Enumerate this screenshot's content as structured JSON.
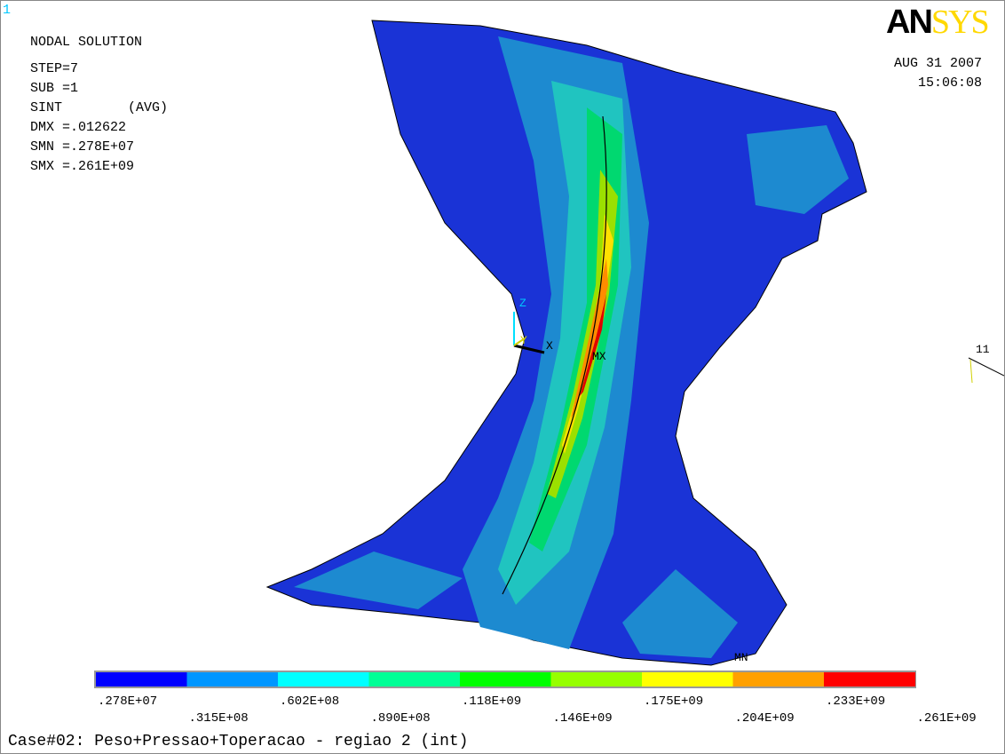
{
  "window": {
    "number": "1",
    "title": "NODAL SOLUTION",
    "info": [
      "STEP=7",
      "SUB =1",
      "SINT",
      "(AVG)",
      "DMX =.012622",
      "SMN =.278E+07",
      "SMX =.261E+09"
    ]
  },
  "logo": {
    "first": "AN",
    "second": "SYS"
  },
  "date": "AUG 31 2007",
  "time": "15:06:08",
  "markers": {
    "z": "Z",
    "y": "Y",
    "x": "X",
    "max": "MX",
    "min": "MN",
    "view": "11"
  },
  "legend": {
    "colors": [
      "#0000ff",
      "#0096ff",
      "#00ffff",
      "#00ff96",
      "#00ff00",
      "#96ff00",
      "#ffff00",
      "#ffa000",
      "#ff0000"
    ],
    "labels": [
      ".278E+07",
      ".315E+08",
      ".602E+08",
      ".890E+08",
      ".118E+09",
      ".146E+09",
      ".175E+09",
      ".204E+09",
      ".233E+09",
      ".261E+09"
    ]
  },
  "caption": "Case#02:  Peso+Pressao+Toperacao - regiao 2 (int)"
}
